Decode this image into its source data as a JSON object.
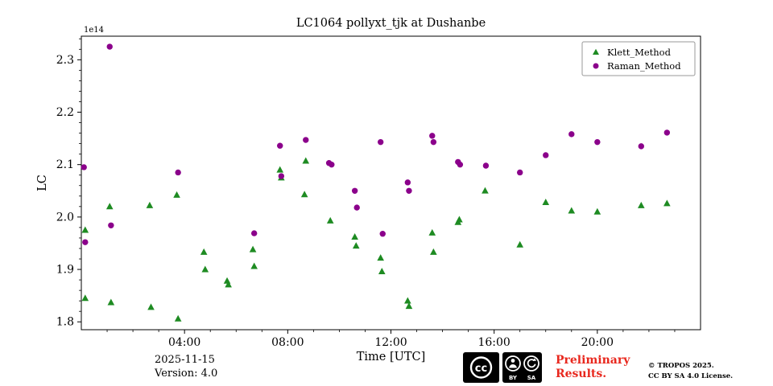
{
  "chart_data": {
    "type": "scatter",
    "title": "LC1064 pollyxt_tjk at Dushanbe",
    "xlabel": "Time [UTC]",
    "ylabel": "LC",
    "offset_text": "1e14",
    "xlim": [
      0,
      24
    ],
    "ylim": [
      1.785,
      2.345
    ],
    "grid": false,
    "legend_position": "top-right",
    "x_ticks": [
      {
        "v": 4,
        "label": "04:00"
      },
      {
        "v": 8,
        "label": "08:00"
      },
      {
        "v": 12,
        "label": "12:00"
      },
      {
        "v": 16,
        "label": "16:00"
      },
      {
        "v": 20,
        "label": "20:00"
      }
    ],
    "y_ticks": [
      {
        "v": 1.8,
        "label": "1.8"
      },
      {
        "v": 1.9,
        "label": "1.9"
      },
      {
        "v": 2.0,
        "label": "2.0"
      },
      {
        "v": 2.1,
        "label": "2.1"
      },
      {
        "v": 2.2,
        "label": "2.2"
      },
      {
        "v": 2.3,
        "label": "2.3"
      }
    ],
    "x_minor_step": 1,
    "y_minor_step": 0.02,
    "series": [
      {
        "name": "Klett_Method",
        "marker": "triangle",
        "color": "#1e8b22",
        "points": [
          [
            0.15,
            1.975
          ],
          [
            0.15,
            1.845
          ],
          [
            1.1,
            2.02
          ],
          [
            1.15,
            1.837
          ],
          [
            2.65,
            2.022
          ],
          [
            2.7,
            1.828
          ],
          [
            3.7,
            2.042
          ],
          [
            3.75,
            1.806
          ],
          [
            4.75,
            1.933
          ],
          [
            4.8,
            1.9
          ],
          [
            5.65,
            1.878
          ],
          [
            5.7,
            1.871
          ],
          [
            6.65,
            1.938
          ],
          [
            6.7,
            1.906
          ],
          [
            7.7,
            2.09
          ],
          [
            7.75,
            2.075
          ],
          [
            8.65,
            2.043
          ],
          [
            8.7,
            2.107
          ],
          [
            9.65,
            1.993
          ],
          [
            10.6,
            1.962
          ],
          [
            10.65,
            1.945
          ],
          [
            11.6,
            1.922
          ],
          [
            11.65,
            1.896
          ],
          [
            12.65,
            1.84
          ],
          [
            12.7,
            1.83
          ],
          [
            13.6,
            1.97
          ],
          [
            13.65,
            1.933
          ],
          [
            14.6,
            1.99
          ],
          [
            14.65,
            1.995
          ],
          [
            15.65,
            2.05
          ],
          [
            17.0,
            1.947
          ],
          [
            18.0,
            2.028
          ],
          [
            19.0,
            2.012
          ],
          [
            20.0,
            2.01
          ],
          [
            21.7,
            2.022
          ],
          [
            22.7,
            2.026
          ]
        ]
      },
      {
        "name": "Raman_Method",
        "marker": "circle",
        "color": "#8b008b",
        "points": [
          [
            0.1,
            2.095
          ],
          [
            0.15,
            1.952
          ],
          [
            1.1,
            2.325
          ],
          [
            1.15,
            1.984
          ],
          [
            3.75,
            2.085
          ],
          [
            6.7,
            1.969
          ],
          [
            7.7,
            2.136
          ],
          [
            7.75,
            2.078
          ],
          [
            8.7,
            2.147
          ],
          [
            9.6,
            2.103
          ],
          [
            9.7,
            2.1
          ],
          [
            10.6,
            2.05
          ],
          [
            10.68,
            2.018
          ],
          [
            11.6,
            2.143
          ],
          [
            11.68,
            1.968
          ],
          [
            12.65,
            2.066
          ],
          [
            12.7,
            2.05
          ],
          [
            13.6,
            2.155
          ],
          [
            13.65,
            2.143
          ],
          [
            14.6,
            2.105
          ],
          [
            14.68,
            2.1
          ],
          [
            15.68,
            2.098
          ],
          [
            17.0,
            2.085
          ],
          [
            18.0,
            2.118
          ],
          [
            19.0,
            2.158
          ],
          [
            20.0,
            2.143
          ],
          [
            21.7,
            2.135
          ],
          [
            22.7,
            2.161
          ]
        ]
      }
    ]
  },
  "footer": {
    "date": "2025-11-15",
    "version": "Version: 4.0",
    "preliminary_line1": "Preliminary",
    "preliminary_line2": "Results.",
    "preliminary_color": "#e8281e",
    "copyright_line1": "© TROPOS 2025.",
    "copyright_line2": "CC BY SA 4.0 License.",
    "cc_label": "cc",
    "cc_by_label": "BY",
    "cc_sa_label": "SA"
  }
}
